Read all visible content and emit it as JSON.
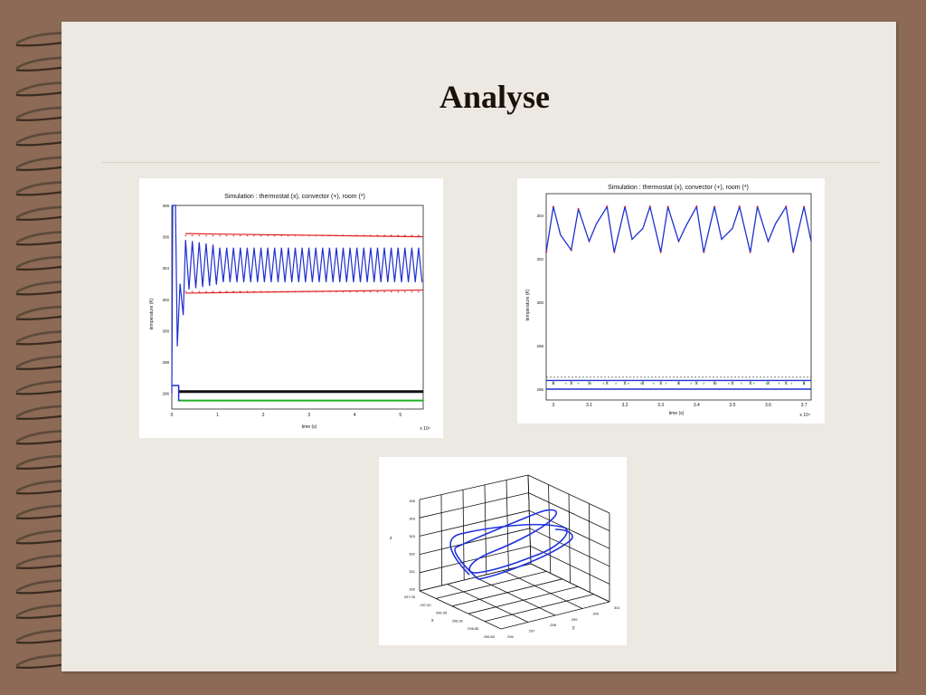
{
  "slide": {
    "title": "Analyse"
  },
  "figures": {
    "fig1": {
      "title": "Simulation : thermostat (x), convector (+), room (*)",
      "ylabel": "temperature (K)",
      "xlabel": "time (s)",
      "xscale": "x 10⁴",
      "yticks": [
        "296",
        "298",
        "300",
        "302",
        "304",
        "306",
        "308"
      ],
      "xticks": [
        "0",
        "1",
        "2",
        "3",
        "4",
        "5"
      ]
    },
    "fig2": {
      "title": "Simulation : thermostat (x), convector (+), room (*)",
      "ylabel": "temperature (K)",
      "xlabel": "time (s)",
      "xscale": "x 10⁴",
      "yticks": [
        "296",
        "298",
        "300",
        "302",
        "304"
      ],
      "xticks": [
        "3",
        "3.1",
        "3.2",
        "3.3",
        "3.4",
        "3.5",
        "3.6",
        "3.7"
      ]
    },
    "fig3": {
      "zticks": [
        "305",
        "304",
        "303",
        "302",
        "301",
        "300"
      ],
      "xticks": [
        "297.05",
        "297.00",
        "296.95",
        "296.90",
        "296.85",
        "296.80"
      ],
      "yticks": [
        "296",
        "297",
        "298",
        "299",
        "300",
        "301"
      ],
      "zlabel": "z",
      "xlabel": "x",
      "ylabel": "y"
    }
  },
  "chart_data": [
    {
      "type": "line",
      "title": "Simulation : thermostat (x), convector (+), room (*)",
      "xlabel": "time (s)",
      "ylabel": "temperature (K)",
      "x_multiplier": "x 10⁴",
      "xlim": [
        0,
        5.5
      ],
      "ylim": [
        295,
        308
      ],
      "series": [
        {
          "name": "thermostat (x)",
          "values_description_free": true,
          "x": [
            0,
            0.1,
            0.3,
            0.5,
            5.5
          ],
          "values": [
            296,
            295.8,
            295.6,
            295.6,
            295.6
          ]
        },
        {
          "name": "convector (+)",
          "x": [
            0.2,
            0.5,
            1,
            2,
            3,
            4,
            5.5
          ],
          "values": [
            302,
            306,
            305.8,
            305.8,
            305.8,
            305.8,
            305.8
          ]
        },
        {
          "name": "room (*)",
          "x": [
            0,
            0.05,
            0.15,
            0.3,
            0.5,
            1,
            2,
            3,
            4,
            5.5
          ],
          "values": [
            296,
            308,
            300,
            306,
            302,
            304.5,
            304.5,
            304.5,
            304.5,
            304.5
          ]
        }
      ],
      "colors": {
        "room": "#1f2fd0",
        "convector": "#e02020",
        "thermostat": "#101010",
        "green": "#20b020"
      }
    },
    {
      "type": "line",
      "title": "Simulation : thermostat (x), convector (+), room (*)",
      "xlabel": "time (s)",
      "ylabel": "temperature (K)",
      "x_multiplier": "x 10⁴",
      "xlim": [
        2.98,
        3.72
      ],
      "ylim": [
        295.5,
        305
      ],
      "series": [
        {
          "name": "room (*)",
          "x": [
            2.98,
            3.0,
            3.02,
            3.05,
            3.07,
            3.1,
            3.12,
            3.15,
            3.17,
            3.2,
            3.22,
            3.25,
            3.27,
            3.3,
            3.32,
            3.35,
            3.37,
            3.4,
            3.42,
            3.45,
            3.47,
            3.5,
            3.52,
            3.55,
            3.57,
            3.6,
            3.62,
            3.65,
            3.67,
            3.7,
            3.72
          ],
          "values": [
            302.3,
            304.4,
            303.1,
            302.4,
            304.3,
            302.8,
            303.6,
            304.4,
            302.3,
            304.4,
            302.9,
            303.4,
            304.4,
            302.3,
            304.4,
            302.8,
            303.5,
            304.4,
            302.3,
            304.4,
            302.9,
            303.4,
            304.4,
            302.3,
            304.4,
            302.8,
            303.6,
            304.4,
            302.3,
            304.4,
            302.8
          ]
        },
        {
          "name": "thermostat (x)",
          "x": [
            2.98,
            3.72
          ],
          "values": [
            296.1,
            296.1
          ]
        }
      ]
    },
    {
      "type": "line",
      "title": "",
      "xlabel": "x",
      "ylabel": "y",
      "zlabel": "z",
      "description3d": "phase-space trajectory (3D)"
    }
  ]
}
